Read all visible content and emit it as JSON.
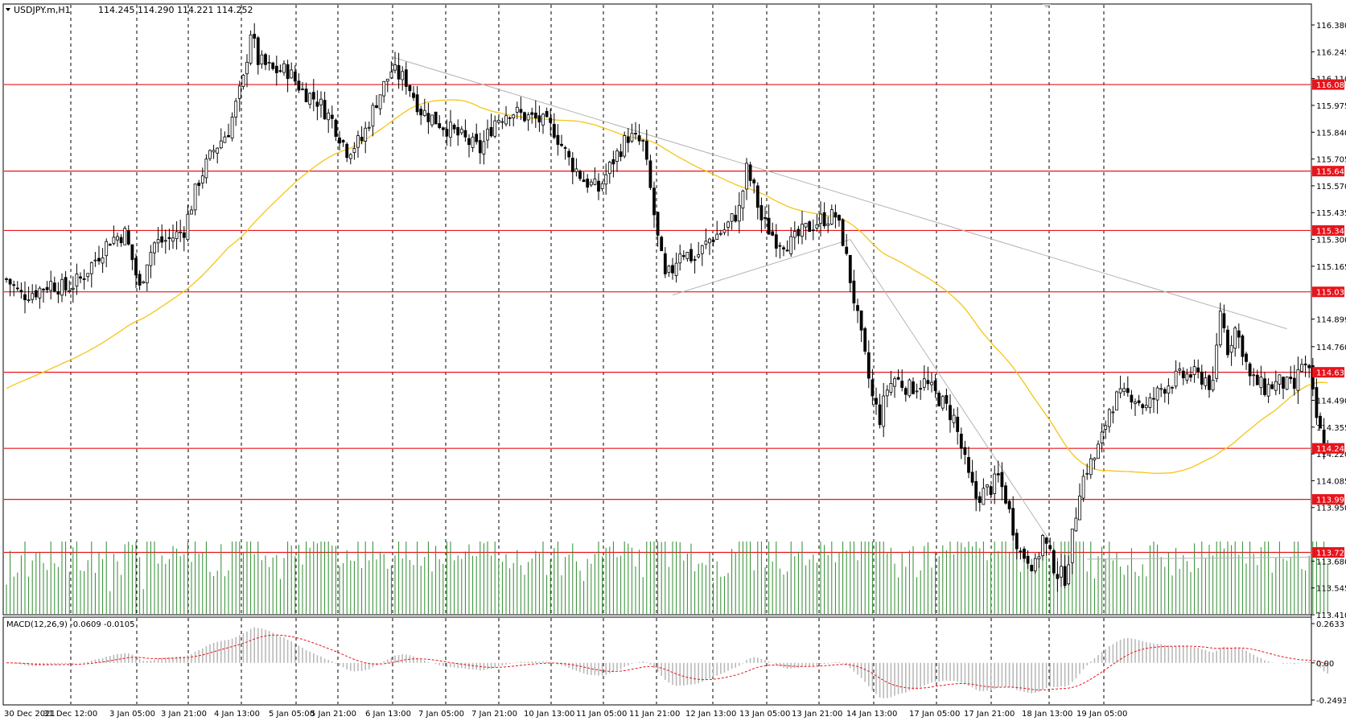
{
  "header": {
    "symbol_info": "USDJPY.m,H1",
    "ohlc": "114.245 114.290 114.221 114.252"
  },
  "macd_header": "MACD(12,26,9) -0.0609 -0.0105",
  "colors": {
    "bull": "#000000",
    "bear": "#000000",
    "volume": "#2e8b2e",
    "sma": "#f5c518",
    "level": "#e8141c",
    "trend": "#b4b4b4",
    "macd_hist": "#b9b9b9",
    "macd_signal": "#e8141c",
    "grid": "#000000"
  },
  "chart_data": [
    {
      "type": "candlestick",
      "title": "USDJPY.m,H1",
      "ylim": [
        113.41,
        116.515
      ],
      "y_ticks": [
        "116.380",
        "116.245",
        "116.110",
        "115.975",
        "115.840",
        "115.705",
        "115.570",
        "115.435",
        "115.300",
        "115.165",
        "114.899",
        "114.760",
        "114.490",
        "114.355",
        "114.220",
        "114.085",
        "113.950",
        "113.680",
        "113.545",
        "113.410"
      ],
      "x_ticks": [
        "30 Dec 2021",
        "31 Dec 12:00",
        "3 Jan 05:00",
        "3 Jan 21:00",
        "4 Jan 13:00",
        "5 Jan 05:00",
        "5 Jan 21:00",
        "6 Jan 13:00",
        "7 Jan 05:00",
        "7 Jan 21:00",
        "10 Jan 13:00",
        "11 Jan 05:00",
        "11 Jan 21:00",
        "12 Jan 13:00",
        "13 Jan 05:00",
        "13 Jan 21:00",
        "14 Jan 13:00",
        "17 Jan 05:00",
        "17 Jan 21:00",
        "18 Jan 13:00",
        "19 Jan 05:00"
      ],
      "levels": [
        "116.080",
        "115.644",
        "115.345",
        "115.036",
        "114.631",
        "114.248",
        "113.991",
        "113.724"
      ],
      "close_path": [
        [
          0,
          115.1
        ],
        [
          4,
          115.02
        ],
        [
          8,
          115.04
        ],
        [
          12,
          115.08
        ],
        [
          16,
          115.05
        ],
        [
          20,
          115.1
        ],
        [
          24,
          115.2
        ],
        [
          28,
          115.3
        ],
        [
          32,
          115.33
        ],
        [
          34,
          115.2
        ],
        [
          36,
          115.05
        ],
        [
          38,
          115.2
        ],
        [
          40,
          115.28
        ],
        [
          44,
          115.3
        ],
        [
          48,
          115.35
        ],
        [
          52,
          115.6
        ],
        [
          56,
          115.75
        ],
        [
          60,
          115.85
        ],
        [
          64,
          116.1
        ],
        [
          66,
          116.35
        ],
        [
          68,
          116.2
        ],
        [
          72,
          116.15
        ],
        [
          76,
          116.15
        ],
        [
          80,
          116.05
        ],
        [
          84,
          116.0
        ],
        [
          88,
          115.9
        ],
        [
          92,
          115.75
        ],
        [
          96,
          115.8
        ],
        [
          100,
          116.0
        ],
        [
          104,
          116.15
        ],
        [
          108,
          116.1
        ],
        [
          112,
          115.95
        ],
        [
          116,
          115.9
        ],
        [
          120,
          115.85
        ],
        [
          124,
          115.8
        ],
        [
          128,
          115.75
        ],
        [
          132,
          115.9
        ],
        [
          136,
          115.95
        ],
        [
          140,
          115.92
        ],
        [
          144,
          115.9
        ],
        [
          148,
          115.85
        ],
        [
          152,
          115.7
        ],
        [
          156,
          115.6
        ],
        [
          160,
          115.55
        ],
        [
          164,
          115.7
        ],
        [
          168,
          115.82
        ],
        [
          172,
          115.78
        ],
        [
          174,
          115.55
        ],
        [
          176,
          115.3
        ],
        [
          178,
          115.1
        ],
        [
          180,
          115.15
        ],
        [
          182,
          115.25
        ],
        [
          186,
          115.2
        ],
        [
          190,
          115.3
        ],
        [
          194,
          115.35
        ],
        [
          198,
          115.45
        ],
        [
          200,
          115.65
        ],
        [
          202,
          115.55
        ],
        [
          204,
          115.4
        ],
        [
          208,
          115.3
        ],
        [
          212,
          115.28
        ],
        [
          216,
          115.35
        ],
        [
          220,
          115.4
        ],
        [
          224,
          115.42
        ],
        [
          226,
          115.3
        ],
        [
          228,
          115.1
        ],
        [
          230,
          114.9
        ],
        [
          232,
          114.7
        ],
        [
          234,
          114.5
        ],
        [
          236,
          114.4
        ],
        [
          238,
          114.55
        ],
        [
          240,
          114.6
        ],
        [
          244,
          114.55
        ],
        [
          248,
          114.58
        ],
        [
          252,
          114.5
        ],
        [
          256,
          114.4
        ],
        [
          258,
          114.25
        ],
        [
          260,
          114.1
        ],
        [
          262,
          114.0
        ],
        [
          266,
          114.05
        ],
        [
          268,
          114.1
        ],
        [
          270,
          114.0
        ],
        [
          272,
          113.85
        ],
        [
          274,
          113.72
        ],
        [
          276,
          113.7
        ],
        [
          278,
          113.65
        ],
        [
          280,
          113.8
        ],
        [
          282,
          113.7
        ],
        [
          284,
          113.62
        ],
        [
          286,
          113.6
        ],
        [
          288,
          113.8
        ],
        [
          290,
          114.05
        ],
        [
          292,
          114.15
        ],
        [
          294,
          114.2
        ],
        [
          296,
          114.3
        ],
        [
          298,
          114.45
        ],
        [
          300,
          114.5
        ],
        [
          304,
          114.52
        ],
        [
          308,
          114.45
        ],
        [
          312,
          114.55
        ],
        [
          316,
          114.6
        ],
        [
          320,
          114.62
        ],
        [
          324,
          114.6
        ],
        [
          326,
          114.55
        ],
        [
          328,
          114.95
        ],
        [
          330,
          114.75
        ],
        [
          332,
          114.85
        ],
        [
          334,
          114.75
        ],
        [
          336,
          114.6
        ],
        [
          340,
          114.55
        ],
        [
          344,
          114.58
        ],
        [
          348,
          114.55
        ],
        [
          350,
          114.68
        ],
        [
          352,
          114.62
        ],
        [
          354,
          114.4
        ],
        [
          356,
          114.25
        ]
      ]
    },
    {
      "type": "bar",
      "title": "Volume",
      "values": "tick volume, same bars as price panel"
    },
    {
      "type": "histogram+line",
      "title": "MACD(12,26,9) -0.0609 -0.0105",
      "ylim": [
        -0.2493,
        0.2633
      ],
      "y_ticks": [
        "0.2633",
        "0.00",
        "-0.2493"
      ]
    }
  ]
}
